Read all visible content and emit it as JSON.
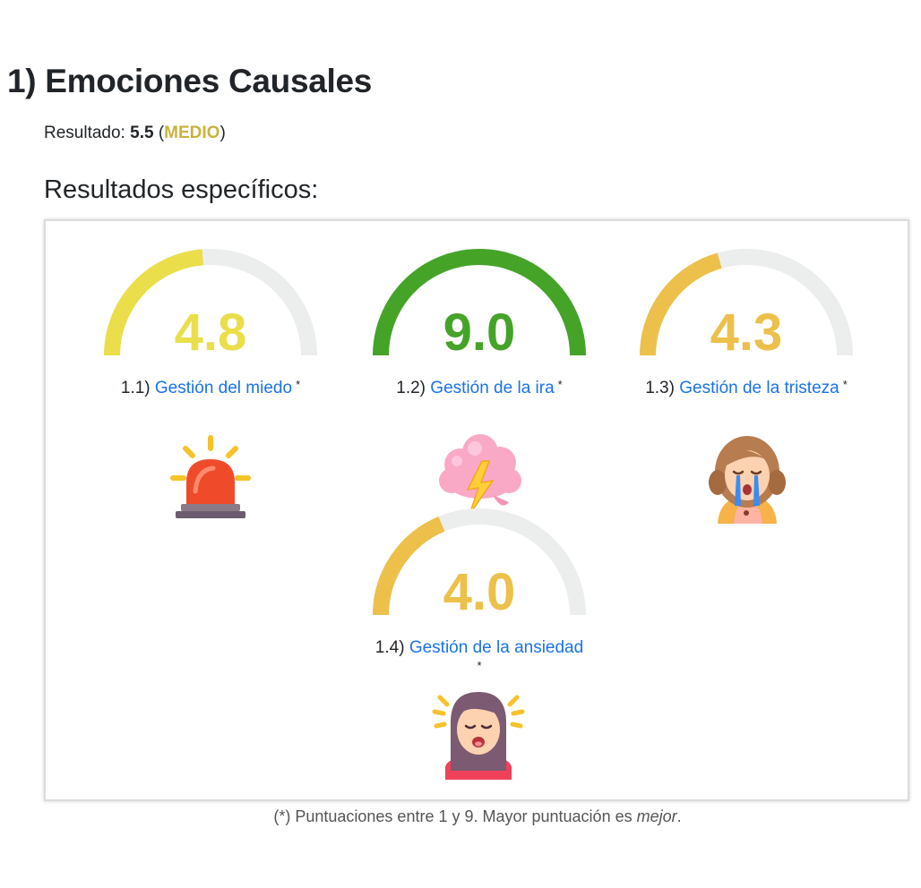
{
  "section": {
    "title": "1) Emociones Causales",
    "result_label": "Resultado:",
    "result_score": "5.5",
    "result_level": "MEDIO",
    "subtitle": "Resultados específicos:"
  },
  "gauges": [
    {
      "number": "1.1)",
      "name": "Gestión del miedo",
      "value_text": "4.8",
      "value": 4.8,
      "color": "#eadf4a",
      "icon": "siren-icon"
    },
    {
      "number": "1.2)",
      "name": "Gestión de la ira",
      "value_text": "9.0",
      "value": 9.0,
      "color": "#45a328",
      "icon": "storm-cloud-icon"
    },
    {
      "number": "1.3)",
      "name": "Gestión de la tristeza",
      "value_text": "4.3",
      "value": 4.3,
      "color": "#ecc04a",
      "icon": "crying-woman-icon"
    },
    {
      "number": "1.4)",
      "name": "Gestión de la ansiedad",
      "value_text": "4.0",
      "value": 4.0,
      "color": "#ecc04a",
      "icon": "anxious-woman-icon"
    }
  ],
  "scale": {
    "min": 1,
    "max": 9
  },
  "asterisk": "*",
  "footnote": {
    "text": "(*) Puntuaciones entre 1 y 9. Mayor puntuación es ",
    "emphasis": "mejor",
    "end": "."
  },
  "colors": {
    "track": "#eceeee",
    "link": "#1a73e8",
    "level": "#c9b23c"
  }
}
